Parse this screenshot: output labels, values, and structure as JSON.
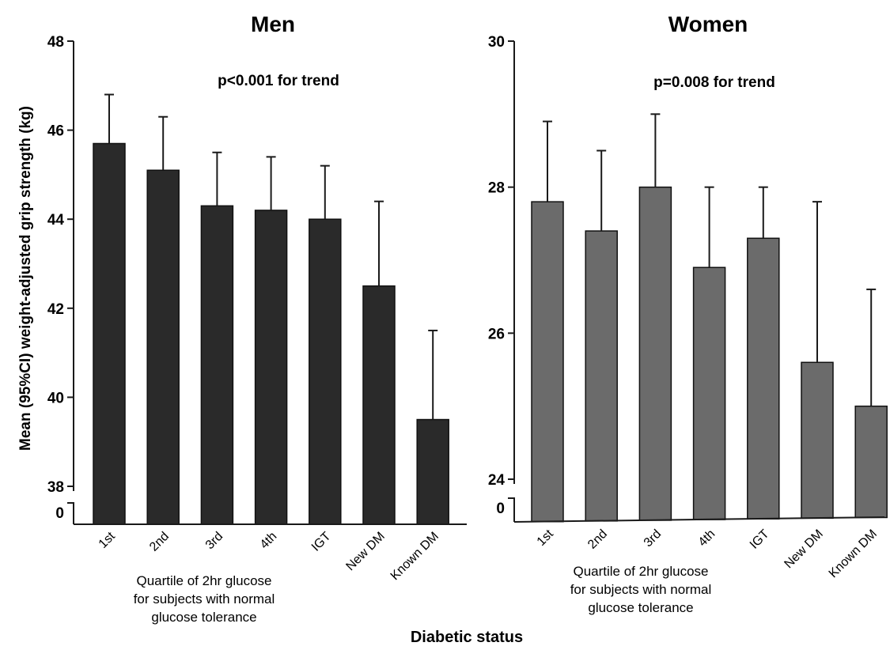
{
  "chart_data": [
    {
      "type": "bar",
      "title": "Men",
      "annotation": "p<0.001 for trend",
      "categories": [
        "1st",
        "2nd",
        "3rd",
        "4th",
        "IGT",
        "New DM",
        "Known DM"
      ],
      "values": [
        45.7,
        45.1,
        44.3,
        44.2,
        44.0,
        42.5,
        39.5
      ],
      "ci_upper": [
        46.8,
        46.3,
        45.5,
        45.4,
        45.2,
        44.4,
        41.5
      ],
      "ylim": [
        38,
        48
      ],
      "y_ticks": [
        "48",
        "46",
        "44",
        "42",
        "40",
        "38"
      ],
      "axis_break_label": "0",
      "category_group_note": [
        "Quartile of 2hr glucose",
        "for subjects with normal",
        "glucose tolerance"
      ],
      "bar_color": "#2a2a2a"
    },
    {
      "type": "bar",
      "title": "Women",
      "annotation": "p=0.008 for trend",
      "categories": [
        "1st",
        "2nd",
        "3rd",
        "4th",
        "IGT",
        "New DM",
        "Known DM"
      ],
      "values": [
        27.8,
        27.4,
        28.0,
        26.9,
        27.3,
        25.6,
        25.0
      ],
      "ci_upper": [
        28.9,
        28.5,
        29.0,
        28.0,
        28.0,
        27.8,
        26.6
      ],
      "ylim": [
        24,
        30
      ],
      "y_ticks": [
        "30",
        "28",
        "26",
        "24"
      ],
      "axis_break_label": "0",
      "category_group_note": [
        "Quartile of 2hr glucose",
        "for subjects with normal",
        "glucose tolerance"
      ],
      "bar_color": "#6b6b6b"
    }
  ],
  "ylabel": "Mean (95%CI) weight-adjusted grip strength (kg)",
  "xlabel": "Diabetic status"
}
